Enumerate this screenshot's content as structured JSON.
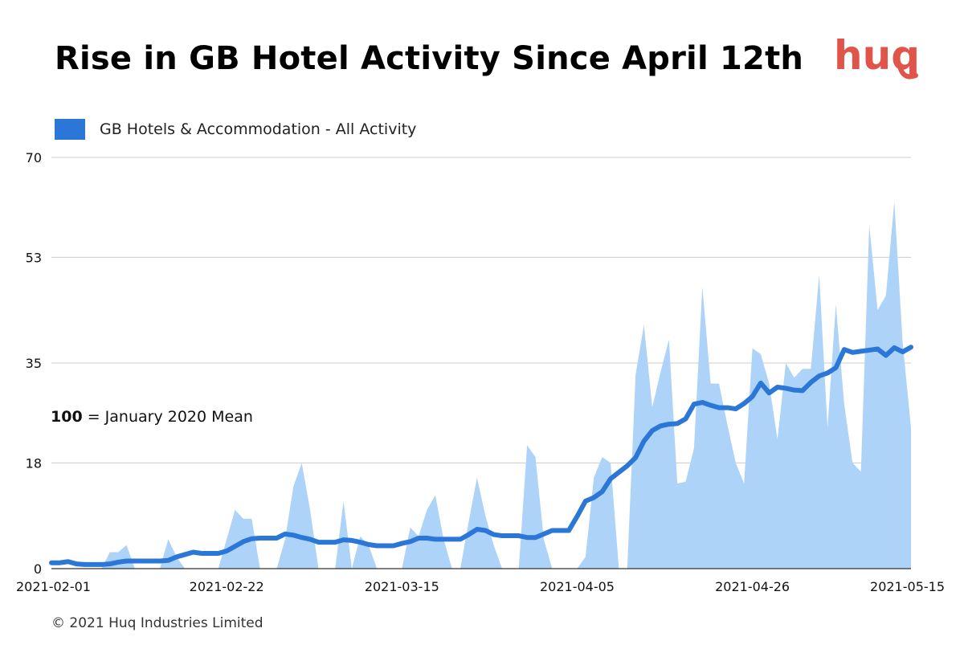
{
  "colors": {
    "area_fill": "#aed3f8",
    "line": "#2b77d7",
    "legend_swatch": "#2b77d7",
    "grid": "#cccccc",
    "logo": "#e0544a"
  },
  "logo": {
    "text": "huq"
  },
  "annotation": {
    "bold": "100",
    "rest": " = January 2020 Mean"
  },
  "copyright": "© 2021 Huq Industries Limited",
  "chart_data": {
    "type": "area",
    "title": "Rise in GB Hotel Activity Since April 12th",
    "xlabel": "",
    "ylabel": "",
    "ylim": [
      0,
      70
    ],
    "y_ticks": [
      "0",
      "18",
      "35",
      "53",
      "70"
    ],
    "x_ticks": [
      "2021-02-01",
      "2021-02-22",
      "2021-03-15",
      "2021-04-05",
      "2021-04-26",
      "2021-05-15"
    ],
    "x_range": [
      "2021-02-01",
      "2021-05-15"
    ],
    "grid": true,
    "legend_position": "top-left",
    "series": [
      {
        "name": "GB Hotels & Accommodation - All Activity",
        "style": "area",
        "points": [
          [
            "2021-02-01",
            0
          ],
          [
            "2021-02-02",
            0
          ],
          [
            "2021-02-03",
            0
          ],
          [
            "2021-02-04",
            0
          ],
          [
            "2021-02-05",
            0
          ],
          [
            "2021-02-06",
            0
          ],
          [
            "2021-02-07",
            0
          ],
          [
            "2021-02-08",
            2.8
          ],
          [
            "2021-02-09",
            2.8
          ],
          [
            "2021-02-10",
            4
          ],
          [
            "2021-02-11",
            0
          ],
          [
            "2021-02-12",
            0
          ],
          [
            "2021-02-13",
            0
          ],
          [
            "2021-02-14",
            0
          ],
          [
            "2021-02-15",
            5
          ],
          [
            "2021-02-16",
            2
          ],
          [
            "2021-02-17",
            0
          ],
          [
            "2021-02-18",
            0
          ],
          [
            "2021-02-19",
            0
          ],
          [
            "2021-02-20",
            0
          ],
          [
            "2021-02-21",
            0
          ],
          [
            "2021-02-22",
            5
          ],
          [
            "2021-02-23",
            10
          ],
          [
            "2021-02-24",
            8.5
          ],
          [
            "2021-02-25",
            8.5
          ],
          [
            "2021-02-26",
            0
          ],
          [
            "2021-02-27",
            0
          ],
          [
            "2021-02-28",
            0
          ],
          [
            "2021-03-01",
            5
          ],
          [
            "2021-03-02",
            14
          ],
          [
            "2021-03-03",
            18
          ],
          [
            "2021-03-04",
            10
          ],
          [
            "2021-03-05",
            0
          ],
          [
            "2021-03-06",
            0
          ],
          [
            "2021-03-07",
            0
          ],
          [
            "2021-03-08",
            11.5
          ],
          [
            "2021-03-09",
            0
          ],
          [
            "2021-03-10",
            5.5
          ],
          [
            "2021-03-11",
            4
          ],
          [
            "2021-03-12",
            0
          ],
          [
            "2021-03-13",
            0
          ],
          [
            "2021-03-14",
            0
          ],
          [
            "2021-03-15",
            0
          ],
          [
            "2021-03-16",
            7
          ],
          [
            "2021-03-17",
            5.5
          ],
          [
            "2021-03-18",
            10
          ],
          [
            "2021-03-19",
            12.5
          ],
          [
            "2021-03-20",
            5
          ],
          [
            "2021-03-21",
            0
          ],
          [
            "2021-03-22",
            0
          ],
          [
            "2021-03-23",
            8
          ],
          [
            "2021-03-24",
            15.5
          ],
          [
            "2021-03-25",
            9
          ],
          [
            "2021-03-26",
            4
          ],
          [
            "2021-03-27",
            0
          ],
          [
            "2021-03-28",
            0
          ],
          [
            "2021-03-29",
            0
          ],
          [
            "2021-03-30",
            21
          ],
          [
            "2021-03-31",
            19
          ],
          [
            "2021-04-01",
            5
          ],
          [
            "2021-04-02",
            0
          ],
          [
            "2021-04-03",
            0
          ],
          [
            "2021-04-04",
            0
          ],
          [
            "2021-04-05",
            0
          ],
          [
            "2021-04-06",
            2
          ],
          [
            "2021-04-07",
            15.5
          ],
          [
            "2021-04-08",
            19
          ],
          [
            "2021-04-09",
            18
          ],
          [
            "2021-04-10",
            0
          ],
          [
            "2021-04-11",
            0
          ],
          [
            "2021-04-12",
            33
          ],
          [
            "2021-04-13",
            41.5
          ],
          [
            "2021-04-14",
            27.5
          ],
          [
            "2021-04-15",
            33.5
          ],
          [
            "2021-04-16",
            39
          ],
          [
            "2021-04-17",
            14.5
          ],
          [
            "2021-04-18",
            14.8
          ],
          [
            "2021-04-19",
            20.5
          ],
          [
            "2021-04-20",
            48
          ],
          [
            "2021-04-21",
            31.5
          ],
          [
            "2021-04-22",
            31.5
          ],
          [
            "2021-04-23",
            24.5
          ],
          [
            "2021-04-24",
            18
          ],
          [
            "2021-04-25",
            14.5
          ],
          [
            "2021-04-26",
            37.5
          ],
          [
            "2021-04-27",
            36.5
          ],
          [
            "2021-04-28",
            31.5
          ],
          [
            "2021-04-29",
            22
          ],
          [
            "2021-04-30",
            35
          ],
          [
            "2021-05-01",
            32.5
          ],
          [
            "2021-05-02",
            34
          ],
          [
            "2021-05-03",
            34
          ],
          [
            "2021-05-04",
            50
          ],
          [
            "2021-05-05",
            24
          ],
          [
            "2021-05-06",
            45
          ],
          [
            "2021-05-07",
            28
          ],
          [
            "2021-05-08",
            18
          ],
          [
            "2021-05-09",
            16.5
          ],
          [
            "2021-05-10",
            58.5
          ],
          [
            "2021-05-11",
            44
          ],
          [
            "2021-05-12",
            46.5
          ],
          [
            "2021-05-13",
            62.5
          ],
          [
            "2021-05-14",
            38.5
          ],
          [
            "2021-05-15",
            24
          ]
        ]
      },
      {
        "name": "",
        "style": "line",
        "points": [
          [
            "2021-02-01",
            1
          ],
          [
            "2021-02-02",
            1
          ],
          [
            "2021-02-03",
            1.2
          ],
          [
            "2021-02-04",
            0.8
          ],
          [
            "2021-02-05",
            0.7
          ],
          [
            "2021-02-06",
            0.7
          ],
          [
            "2021-02-07",
            0.7
          ],
          [
            "2021-02-08",
            0.8
          ],
          [
            "2021-02-09",
            1.1
          ],
          [
            "2021-02-10",
            1.3
          ],
          [
            "2021-02-11",
            1.3
          ],
          [
            "2021-02-12",
            1.3
          ],
          [
            "2021-02-13",
            1.3
          ],
          [
            "2021-02-14",
            1.3
          ],
          [
            "2021-02-15",
            1.4
          ],
          [
            "2021-02-16",
            2
          ],
          [
            "2021-02-17",
            2.4
          ],
          [
            "2021-02-18",
            2.8
          ],
          [
            "2021-02-19",
            2.6
          ],
          [
            "2021-02-20",
            2.6
          ],
          [
            "2021-02-21",
            2.6
          ],
          [
            "2021-02-22",
            3
          ],
          [
            "2021-02-23",
            3.8
          ],
          [
            "2021-02-24",
            4.6
          ],
          [
            "2021-02-25",
            5.1
          ],
          [
            "2021-02-26",
            5.2
          ],
          [
            "2021-02-27",
            5.2
          ],
          [
            "2021-02-28",
            5.2
          ],
          [
            "2021-03-01",
            5.9
          ],
          [
            "2021-03-02",
            5.7
          ],
          [
            "2021-03-03",
            5.3
          ],
          [
            "2021-03-04",
            5
          ],
          [
            "2021-03-05",
            4.5
          ],
          [
            "2021-03-06",
            4.5
          ],
          [
            "2021-03-07",
            4.5
          ],
          [
            "2021-03-08",
            4.9
          ],
          [
            "2021-03-09",
            4.8
          ],
          [
            "2021-03-10",
            4.5
          ],
          [
            "2021-03-11",
            4.1
          ],
          [
            "2021-03-12",
            3.9
          ],
          [
            "2021-03-13",
            3.9
          ],
          [
            "2021-03-14",
            3.9
          ],
          [
            "2021-03-15",
            4.3
          ],
          [
            "2021-03-16",
            4.6
          ],
          [
            "2021-03-17",
            5.2
          ],
          [
            "2021-03-18",
            5.2
          ],
          [
            "2021-03-19",
            5
          ],
          [
            "2021-03-20",
            5
          ],
          [
            "2021-03-21",
            5
          ],
          [
            "2021-03-22",
            5
          ],
          [
            "2021-03-23",
            5.8
          ],
          [
            "2021-03-24",
            6.7
          ],
          [
            "2021-03-25",
            6.5
          ],
          [
            "2021-03-26",
            5.8
          ],
          [
            "2021-03-27",
            5.6
          ],
          [
            "2021-03-28",
            5.6
          ],
          [
            "2021-03-29",
            5.6
          ],
          [
            "2021-03-30",
            5.3
          ],
          [
            "2021-03-31",
            5.3
          ],
          [
            "2021-04-01",
            5.9
          ],
          [
            "2021-04-02",
            6.5
          ],
          [
            "2021-04-03",
            6.5
          ],
          [
            "2021-04-04",
            6.5
          ],
          [
            "2021-04-05",
            8.9
          ],
          [
            "2021-04-06",
            11.5
          ],
          [
            "2021-04-07",
            12.1
          ],
          [
            "2021-04-08",
            13.1
          ],
          [
            "2021-04-09",
            15.3
          ],
          [
            "2021-04-10",
            16.4
          ],
          [
            "2021-04-11",
            17.5
          ],
          [
            "2021-04-12",
            18.9
          ],
          [
            "2021-04-13",
            21.7
          ],
          [
            "2021-04-14",
            23.5
          ],
          [
            "2021-04-15",
            24.3
          ],
          [
            "2021-04-16",
            24.6
          ],
          [
            "2021-04-17",
            24.7
          ],
          [
            "2021-04-18",
            25.5
          ],
          [
            "2021-04-19",
            28
          ],
          [
            "2021-04-20",
            28.3
          ],
          [
            "2021-04-21",
            27.8
          ],
          [
            "2021-04-22",
            27.4
          ],
          [
            "2021-04-23",
            27.4
          ],
          [
            "2021-04-24",
            27.2
          ],
          [
            "2021-04-25",
            28.1
          ],
          [
            "2021-04-26",
            29.3
          ],
          [
            "2021-04-27",
            31.6
          ],
          [
            "2021-04-28",
            29.9
          ],
          [
            "2021-04-29",
            30.9
          ],
          [
            "2021-04-30",
            30.7
          ],
          [
            "2021-05-01",
            30.4
          ],
          [
            "2021-05-02",
            30.3
          ],
          [
            "2021-05-03",
            31.7
          ],
          [
            "2021-05-04",
            32.8
          ],
          [
            "2021-05-05",
            33.3
          ],
          [
            "2021-05-06",
            34.2
          ],
          [
            "2021-05-07",
            37.3
          ],
          [
            "2021-05-08",
            36.8
          ],
          [
            "2021-05-09",
            37
          ],
          [
            "2021-05-10",
            37.2
          ],
          [
            "2021-05-11",
            37.4
          ],
          [
            "2021-05-12",
            36.3
          ],
          [
            "2021-05-13",
            37.6
          ],
          [
            "2021-05-14",
            36.9
          ],
          [
            "2021-05-15",
            37.7
          ]
        ]
      }
    ]
  }
}
